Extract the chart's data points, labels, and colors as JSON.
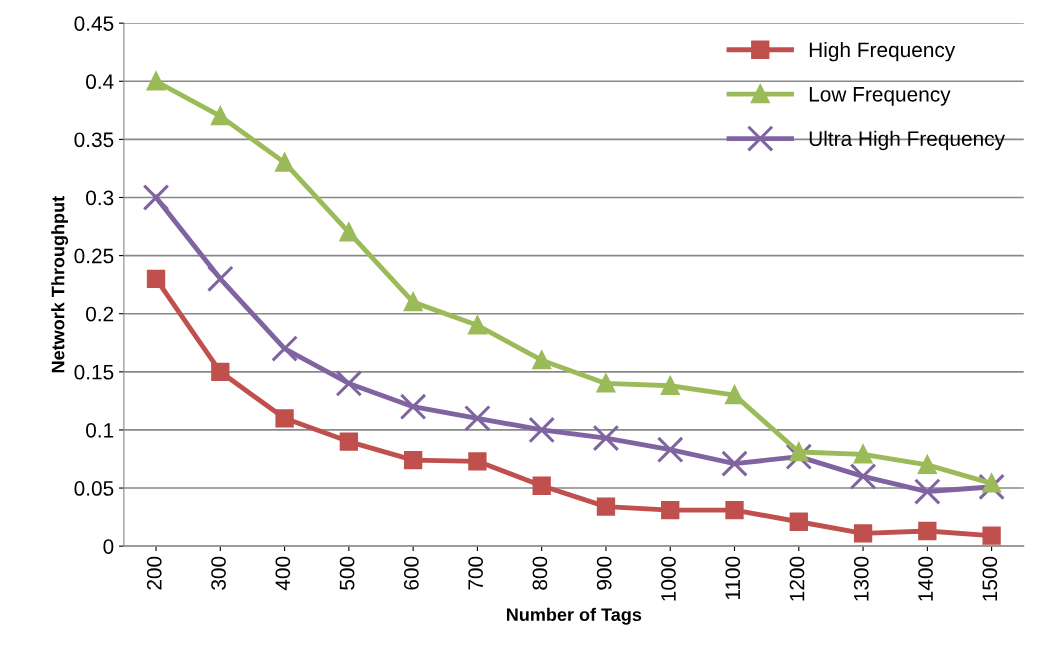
{
  "chart_data": {
    "type": "line",
    "xlabel": "Number of Tags",
    "ylabel": "Network Throughput",
    "categories": [
      "200",
      "300",
      "400",
      "500",
      "600",
      "700",
      "800",
      "900",
      "1000",
      "1100",
      "1200",
      "1300",
      "1400",
      "1500"
    ],
    "series": [
      {
        "name": "High Frequency",
        "color": "#c0504d",
        "marker": "square",
        "values": [
          0.23,
          0.15,
          0.11,
          0.09,
          0.074,
          0.073,
          0.052,
          0.034,
          0.031,
          0.031,
          0.021,
          0.011,
          0.013,
          0.009
        ]
      },
      {
        "name": "Low Frequency",
        "color": "#9bbb59",
        "marker": "triangle",
        "values": [
          0.4,
          0.37,
          0.33,
          0.27,
          0.21,
          0.19,
          0.16,
          0.14,
          0.138,
          0.13,
          0.081,
          0.079,
          0.07,
          0.054
        ]
      },
      {
        "name": "Ultra High Frequency",
        "color": "#8064a2",
        "marker": "cross",
        "values": [
          0.3,
          0.23,
          0.17,
          0.14,
          0.12,
          0.11,
          0.1,
          0.093,
          0.083,
          0.071,
          0.077,
          0.06,
          0.047,
          0.051
        ]
      }
    ],
    "ylim": [
      0,
      0.45
    ],
    "yticks": [
      0,
      0.05,
      0.1,
      0.15,
      0.2,
      0.25,
      0.3,
      0.35,
      0.4,
      0.45
    ],
    "grid": "y",
    "legend": "top right",
    "line_style": "solid"
  }
}
